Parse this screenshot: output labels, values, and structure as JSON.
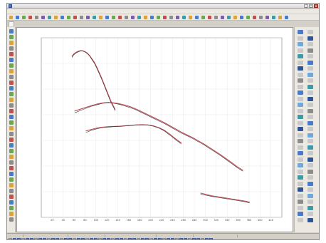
{
  "window": {
    "title": "",
    "app_icon": "app-icon",
    "buttons": {
      "minimize": "_",
      "maximize": "□",
      "close": "x"
    }
  },
  "menu": {
    "items": [
      "",
      "",
      "",
      "",
      "",
      "",
      "",
      "",
      "",
      "",
      "",
      "",
      "",
      "",
      ""
    ]
  },
  "tabs": [
    ""
  ],
  "chart_data": {
    "type": "line",
    "title": "",
    "x_ticks": [
      "20",
      "40",
      "60",
      "80",
      "100",
      "120",
      "140",
      "160",
      "180",
      "200",
      "220",
      "240",
      "260",
      "280",
      "300",
      "320",
      "340",
      "360",
      "380",
      "400",
      "420"
    ],
    "y_ticks": [
      "",
      "",
      "",
      "",
      "",
      "",
      "",
      ""
    ],
    "xlim": [
      0,
      430
    ],
    "ylim": [
      0,
      800
    ],
    "grid": true,
    "series": [
      {
        "group": "curve-1",
        "color": "#c0404a",
        "x": [
          55,
          58,
          62,
          66,
          70,
          74,
          78,
          82,
          86,
          90,
          95,
          100,
          108,
          116,
          124,
          132
        ],
        "y": [
          718,
          728,
          735,
          740,
          743,
          742,
          738,
          732,
          722,
          708,
          690,
          665,
          620,
          570,
          520,
          480
        ]
      },
      {
        "group": "curve-1",
        "color": "#2a2a2a",
        "x": [
          55,
          58,
          62,
          66,
          70,
          74,
          78,
          82,
          86,
          90,
          95,
          100,
          108,
          116,
          124,
          132
        ],
        "y": [
          713,
          724,
          732,
          737,
          741,
          741,
          737,
          730,
          720,
          705,
          686,
          660,
          615,
          565,
          515,
          476
        ]
      },
      {
        "group": "curve-2",
        "color": "#c0404a",
        "x": [
          60,
          70,
          80,
          90,
          100,
          110,
          120,
          130,
          140,
          150,
          160,
          170,
          180,
          190,
          200,
          210,
          220,
          230,
          240,
          250,
          260,
          270,
          280,
          290,
          300,
          310,
          320,
          330,
          340,
          350,
          360
        ],
        "y": [
          474,
          482,
          490,
          498,
          505,
          510,
          512,
          510,
          506,
          500,
          492,
          482,
          470,
          458,
          446,
          434,
          422,
          408,
          394,
          380,
          368,
          356,
          342,
          328,
          312,
          296,
          280,
          262,
          244,
          226,
          210
        ]
      },
      {
        "group": "curve-2",
        "color": "#2a2a2a",
        "x": [
          60,
          70,
          80,
          90,
          100,
          110,
          120,
          130,
          140,
          150,
          160,
          170,
          180,
          190,
          200,
          210,
          220,
          230,
          240,
          250,
          260,
          270,
          280,
          290,
          300,
          310,
          320,
          330,
          340,
          350,
          360
        ],
        "y": [
          466,
          476,
          486,
          495,
          502,
          508,
          511,
          508,
          503,
          496,
          488,
          478,
          466,
          454,
          442,
          430,
          418,
          404,
          390,
          376,
          364,
          352,
          338,
          324,
          308,
          292,
          276,
          258,
          240,
          222,
          206
        ]
      },
      {
        "group": "curve-3",
        "color": "#c0404a",
        "x": [
          80,
          90,
          100,
          110,
          120,
          130,
          140,
          150,
          160,
          170,
          180,
          190,
          200,
          210,
          220,
          230,
          240,
          250
        ],
        "y": [
          385,
          392,
          398,
          402,
          404,
          405,
          406,
          408,
          410,
          412,
          413,
          412,
          408,
          400,
          388,
          370,
          350,
          332
        ]
      },
      {
        "group": "curve-3",
        "color": "#2a2a2a",
        "x": [
          80,
          90,
          100,
          110,
          120,
          130,
          140,
          150,
          160,
          170,
          180,
          190,
          200,
          210,
          220,
          230,
          240,
          250
        ],
        "y": [
          378,
          388,
          395,
          400,
          402,
          404,
          405,
          407,
          409,
          411,
          412,
          411,
          406,
          398,
          385,
          366,
          346,
          328
        ]
      },
      {
        "group": "curve-4",
        "color": "#c0404a",
        "x": [
          285,
          295,
          305,
          315,
          325,
          335,
          345,
          355,
          365,
          372
        ],
        "y": [
          108,
          102,
          96,
          92,
          88,
          84,
          80,
          76,
          72,
          68
        ]
      },
      {
        "group": "curve-4",
        "color": "#2a2a2a",
        "x": [
          285,
          295,
          305,
          315,
          325,
          335,
          345,
          355,
          365,
          372
        ],
        "y": [
          103,
          98,
          93,
          89,
          85,
          81,
          77,
          73,
          69,
          64
        ]
      }
    ]
  },
  "status": {
    "cells": [
      "",
      "",
      "",
      "",
      "",
      ""
    ]
  },
  "colors": {
    "accent": "#4a7bc8",
    "curve_red": "#c0404a",
    "curve_dark": "#2a2a2a",
    "grid": "#e3e3e3"
  }
}
